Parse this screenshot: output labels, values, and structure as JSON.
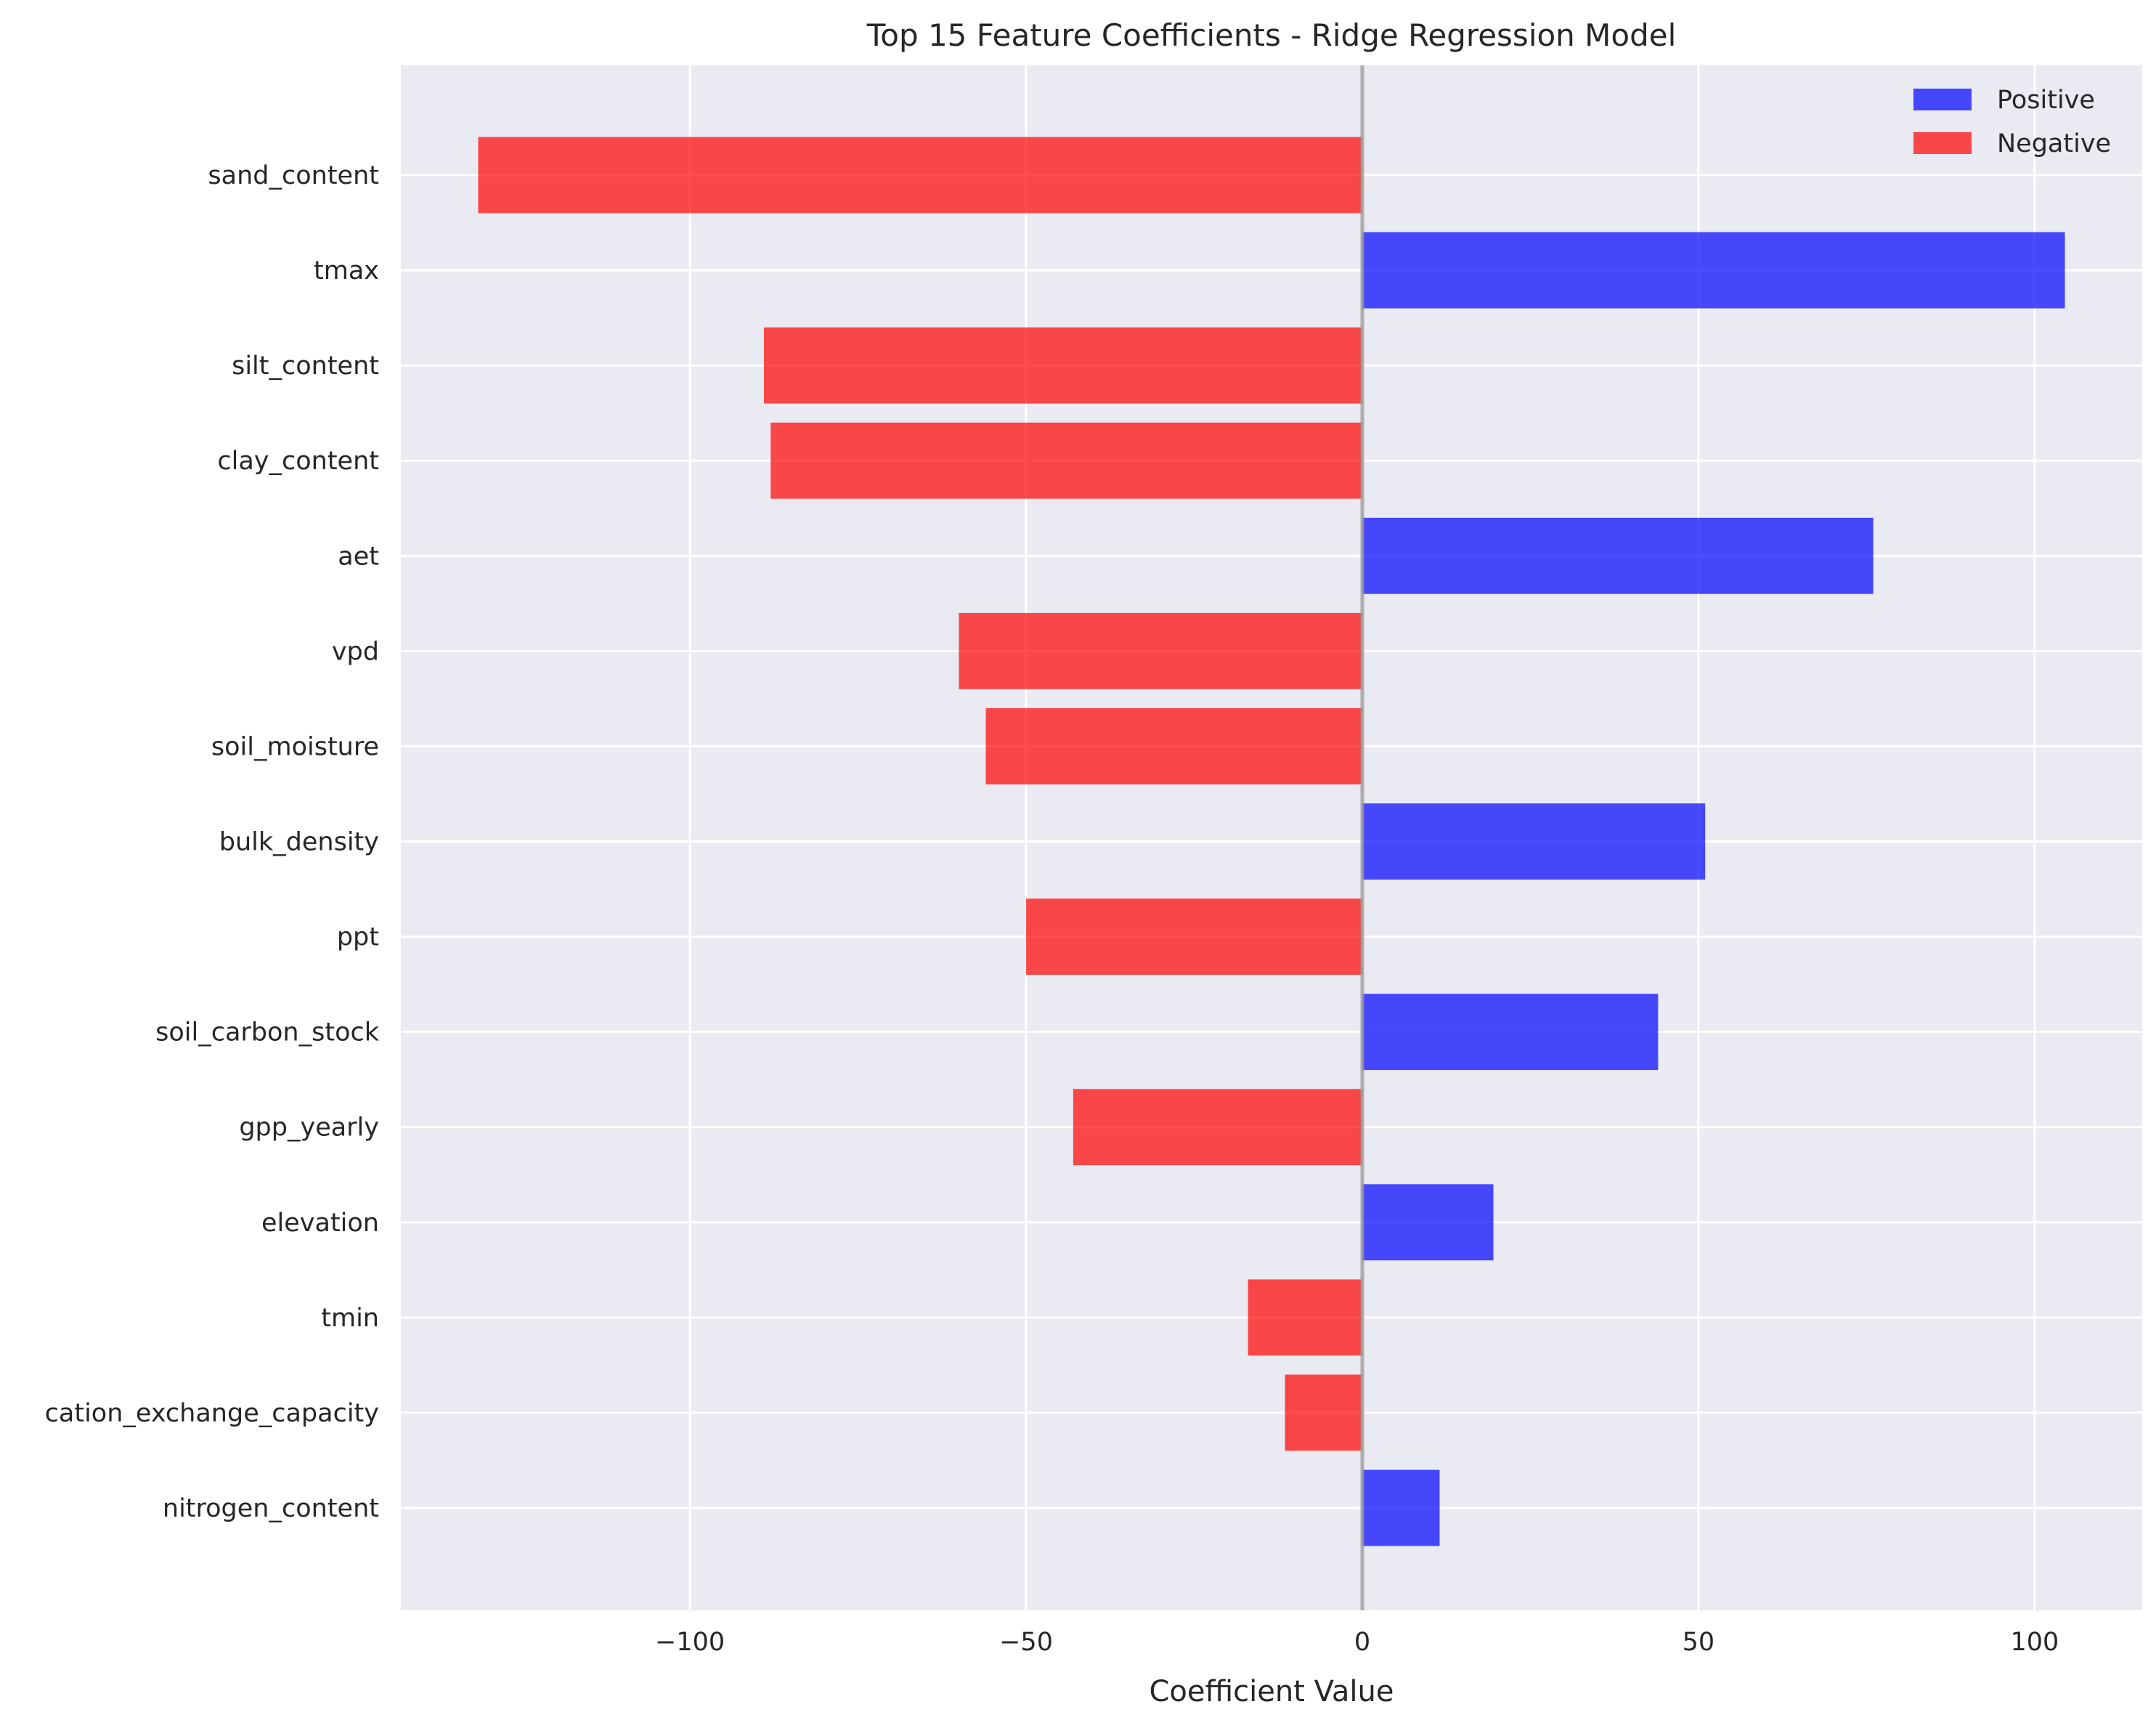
{
  "chart_data": {
    "type": "bar",
    "orientation": "horizontal",
    "title": "Top 15 Feature Coefficients - Ridge Regression Model",
    "xlabel": "Coefficient Value",
    "ylabel": "",
    "categories": [
      "sand_content",
      "tmax",
      "silt_content",
      "clay_content",
      "aet",
      "vpd",
      "soil_moisture",
      "bulk_density",
      "ppt",
      "soil_carbon_stock",
      "gpp_yearly",
      "elevation",
      "tmin",
      "cation_exchange_capacity",
      "nitrogen_content"
    ],
    "values": [
      -131.5,
      104.5,
      -89,
      -88,
      76,
      -60,
      -56,
      51,
      -50,
      44,
      -43,
      19.5,
      -17,
      -11.5,
      11.5
    ],
    "xlim": [
      -143,
      116
    ],
    "xticks": [
      -100,
      -50,
      0,
      50,
      100
    ],
    "xtick_labels": [
      "−100",
      "−50",
      "0",
      "50",
      "100"
    ],
    "grid": true,
    "legend": {
      "placement": "top-right",
      "entries": [
        {
          "label": "Positive",
          "color": "#0000ff"
        },
        {
          "label": "Negative",
          "color": "#ff0000"
        }
      ]
    },
    "colors": {
      "positive": "#0000ff",
      "negative": "#ff0000",
      "background": "#eaeaf2",
      "grid": "#ffffff",
      "zero_line": "#999999"
    }
  }
}
